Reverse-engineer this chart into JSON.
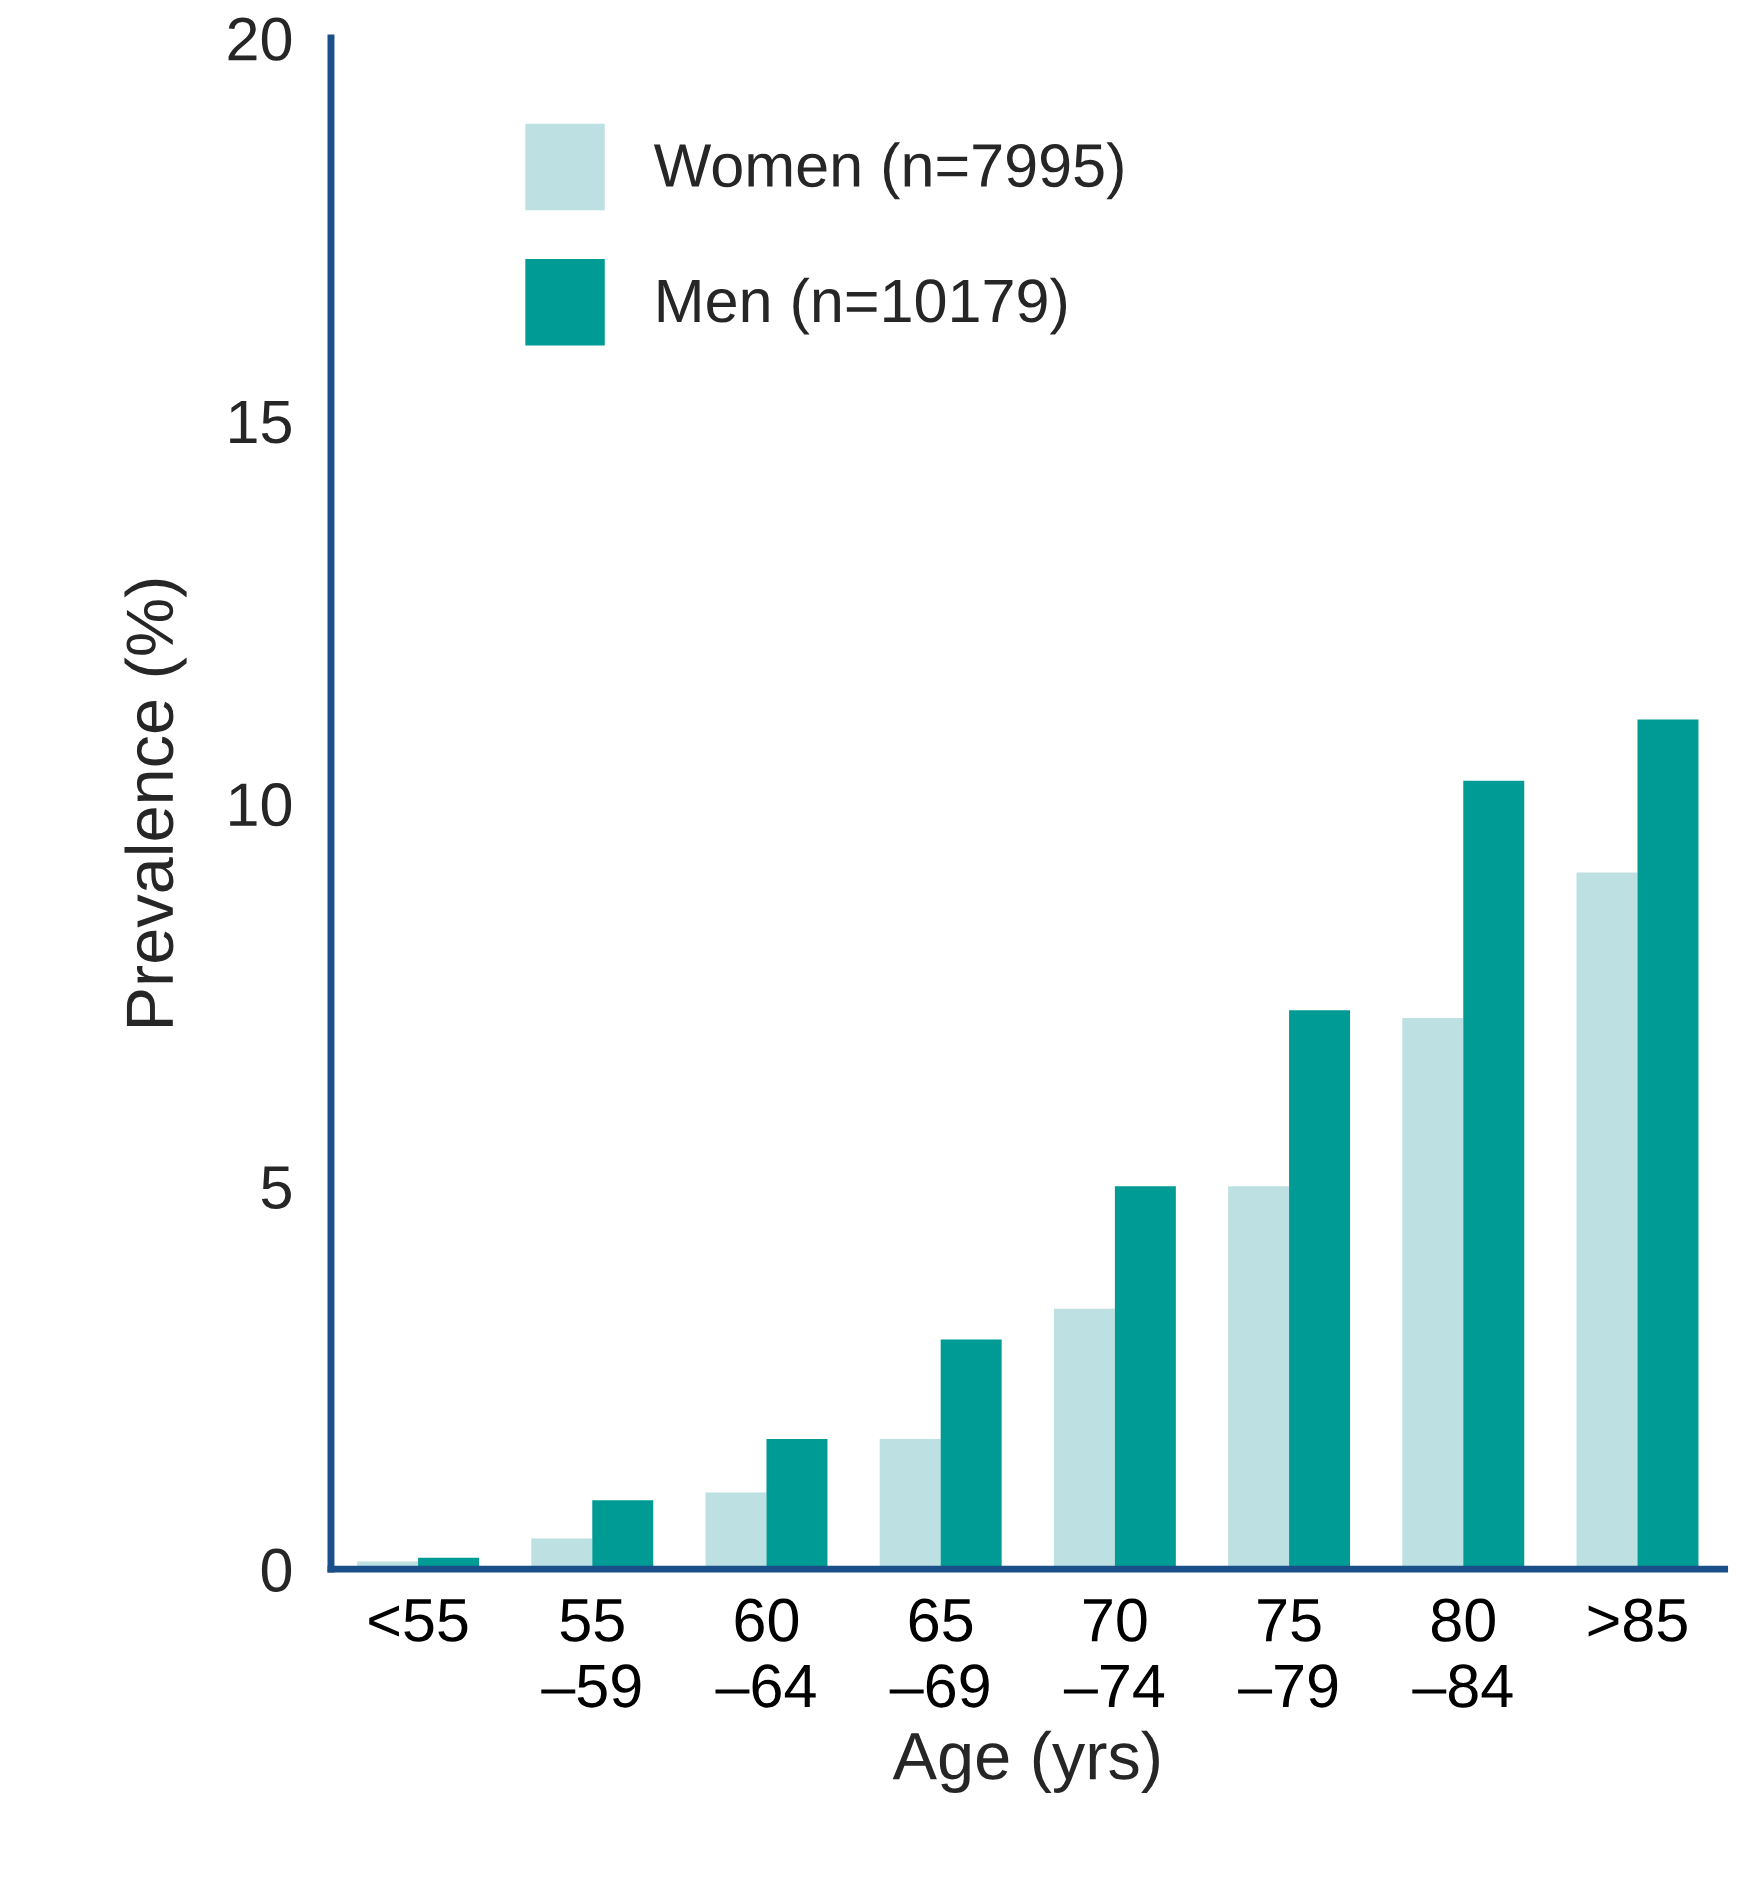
{
  "chart_data": {
    "type": "bar",
    "xlabel": "Age (yrs)",
    "ylabel": "Prevalence (%)",
    "categories": [
      "<55",
      "55\n–59",
      "60\n–64",
      "65\n–69",
      "70\n–74",
      "75\n–79",
      "80\n–84",
      ">85"
    ],
    "series": [
      {
        "name": "Women (n=7995)",
        "color": "#bde0e2",
        "values": [
          0.1,
          0.4,
          1.0,
          1.7,
          3.4,
          5.0,
          7.2,
          9.1
        ]
      },
      {
        "name": "Men (n=10179)",
        "color": "#009b95",
        "values": [
          0.15,
          0.9,
          1.7,
          3.0,
          5.0,
          7.3,
          10.3,
          11.1
        ]
      }
    ],
    "ylim": [
      0,
      20
    ],
    "yticks": [
      0,
      5,
      10,
      15,
      20
    ],
    "grid": false,
    "legend": "top left"
  }
}
